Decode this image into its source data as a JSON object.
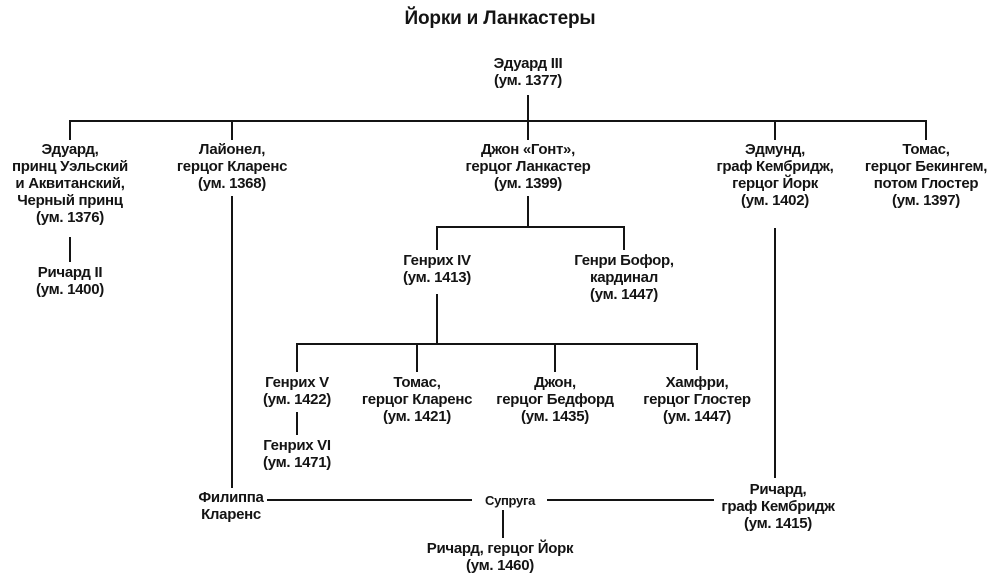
{
  "title": "Йорки и Ланкастеры",
  "colors": {
    "ink": "#141414",
    "background": "#ffffff"
  },
  "nodes": {
    "edward3": {
      "lines": [
        "Эдуард III",
        "(ум. 1377)"
      ]
    },
    "edward_prince": {
      "lines": [
        "Эдуард,",
        "принц Уэльский",
        "и Аквитанский,",
        "Черный принц",
        "(ум. 1376)"
      ]
    },
    "lionel": {
      "lines": [
        "Лайонел,",
        "герцог Кларенс",
        "(ум. 1368)"
      ]
    },
    "john_gaunt": {
      "lines": [
        "Джон «Гонт»,",
        "герцог Ланкастер",
        "(ум. 1399)"
      ]
    },
    "edmund": {
      "lines": [
        "Эдмунд,",
        "граф Кембридж,",
        "герцог Йорк",
        "(ум. 1402)"
      ]
    },
    "thomas_buckingham": {
      "lines": [
        "Томас,",
        "герцог Бекингем,",
        "потом Глостер",
        "(ум. 1397)"
      ]
    },
    "richard2": {
      "lines": [
        "Ричард II",
        "(ум. 1400)"
      ]
    },
    "henry4": {
      "lines": [
        "Генрих IV",
        "(ум. 1413)"
      ]
    },
    "henry_beaufort": {
      "lines": [
        "Генри Бофор,",
        "кардинал",
        "(ум. 1447)"
      ]
    },
    "henry5": {
      "lines": [
        "Генрих V",
        "(ум. 1422)"
      ]
    },
    "thomas_clarence": {
      "lines": [
        "Томас,",
        "герцог Кларенс",
        "(ум. 1421)"
      ]
    },
    "john_bedford": {
      "lines": [
        "Джон,",
        "герцог Бедфорд",
        "(ум. 1435)"
      ]
    },
    "humphrey": {
      "lines": [
        "Хамфри,",
        "герцог Глостер",
        "(ум. 1447)"
      ]
    },
    "henry6": {
      "lines": [
        "Генрих VI",
        "(ум. 1471)"
      ]
    },
    "philippa": {
      "lines": [
        "Филиппа",
        "Кларенс"
      ]
    },
    "spouse": {
      "lines": [
        "Супруга"
      ]
    },
    "richard_cambridge": {
      "lines": [
        "Ричард,",
        "граф Кембридж",
        "(ум. 1415)"
      ]
    },
    "richard_york": {
      "lines": [
        "Ричард, герцог Йорк",
        "(ум. 1460)"
      ]
    }
  }
}
